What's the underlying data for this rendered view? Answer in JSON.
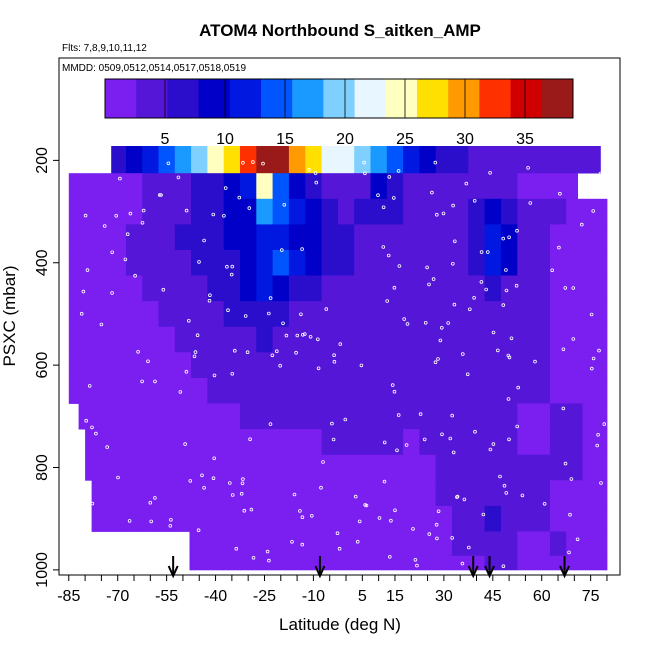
{
  "chart_data": {
    "type": "heatmap",
    "title": "ATOM4 Northbound S_aitken_AMP",
    "subtitle_flights": "Flts: 7,8,9,10,11,12",
    "subtitle_dates": "MMDD: 0509,0512,0514,0517,0518,0519",
    "xlabel": "Latitude (deg N)",
    "ylabel": "PSXC (mbar)",
    "xlim": [
      -88,
      84
    ],
    "ylim": [
      1010,
      0
    ],
    "x_ticks": [
      "-85",
      "-70",
      "-55",
      "-40",
      "-25",
      "-10",
      "5",
      "15",
      "30",
      "45",
      "60",
      "75"
    ],
    "x_tick_values": [
      -85,
      -70,
      -55,
      -40,
      -25,
      -10,
      5,
      15,
      30,
      45,
      60,
      75
    ],
    "y_ticks": [
      "200",
      "400",
      "600",
      "800",
      "1000"
    ],
    "y_tick_values": [
      200,
      400,
      600,
      800,
      1000
    ],
    "colorbar": {
      "range": [
        0,
        39
      ],
      "ticks": [
        "5",
        "10",
        "15",
        "20",
        "25",
        "30",
        "35"
      ],
      "tick_values": [
        5,
        10,
        15,
        20,
        25,
        30,
        35
      ],
      "colors": [
        "#7a1ff0",
        "#5516d8",
        "#2a0ecc",
        "#0000c8",
        "#0018e0",
        "#0055ff",
        "#1a9aff",
        "#7fd0ff",
        "#e8f6ff",
        "#ffffc0",
        "#ffe000",
        "#ff9a00",
        "#ff3000",
        "#d00000",
        "#9a1a1a"
      ]
    },
    "arrows_lat": [
      -53,
      -8,
      39,
      44,
      67
    ],
    "pressure_levels": [
      200,
      250,
      300,
      350,
      400,
      450,
      500,
      550,
      600,
      650,
      700,
      750,
      800,
      850,
      900,
      950,
      995
    ],
    "latitude_bins": [
      -85,
      -80,
      -75,
      -70,
      -65,
      -60,
      -55,
      -50,
      -45,
      -40,
      -35,
      -30,
      -25,
      -20,
      -15,
      -10,
      -5,
      0,
      5,
      10,
      15,
      20,
      25,
      30,
      35,
      40,
      45,
      50,
      55,
      60,
      65,
      70,
      75,
      80
    ],
    "lat_coverage": [
      [
        -72,
        78
      ],
      [
        -85,
        71
      ],
      [
        -85,
        80
      ],
      [
        -85,
        80
      ],
      [
        -85,
        80
      ],
      [
        -85,
        80
      ],
      [
        -85,
        80
      ],
      [
        -85,
        80
      ],
      [
        -85,
        80
      ],
      [
        -85,
        80
      ],
      [
        -82,
        80
      ],
      [
        -80,
        80
      ],
      [
        -80,
        80
      ],
      [
        -78,
        80
      ],
      [
        -78,
        80
      ],
      [
        -48,
        80
      ],
      [
        -48,
        80
      ]
    ],
    "values": [
      [
        3,
        4,
        5,
        6,
        8,
        11,
        14,
        17,
        20,
        24,
        28,
        33,
        37,
        38,
        30,
        26,
        23,
        21,
        19,
        18,
        15,
        12,
        9,
        7,
        6,
        5,
        5,
        5,
        5,
        4,
        4,
        4,
        3,
        3
      ],
      [
        1,
        1,
        2,
        2,
        2,
        3,
        4,
        5,
        6,
        6,
        8,
        12,
        24,
        13,
        9,
        7,
        5,
        4,
        5,
        8,
        6,
        5,
        5,
        4,
        3,
        3,
        3,
        3,
        2,
        2,
        2,
        2,
        2,
        2
      ],
      [
        1,
        1,
        1,
        2,
        2,
        3,
        4,
        5,
        6,
        7,
        9,
        10,
        16,
        15,
        12,
        9,
        7,
        5,
        6,
        7,
        6,
        4,
        4,
        4,
        5,
        6,
        8,
        7,
        4,
        3,
        3,
        2,
        2,
        2
      ],
      [
        1,
        1,
        1,
        2,
        3,
        3,
        4,
        6,
        6,
        7,
        8,
        9,
        11,
        12,
        10,
        8,
        7,
        6,
        5,
        5,
        5,
        4,
        4,
        4,
        5,
        6,
        12,
        8,
        4,
        3,
        2,
        2,
        2,
        2
      ],
      [
        1,
        1,
        1,
        2,
        3,
        3,
        4,
        5,
        6,
        7,
        7,
        8,
        12,
        13,
        11,
        8,
        7,
        6,
        5,
        5,
        5,
        4,
        4,
        4,
        5,
        6,
        12,
        9,
        4,
        3,
        2,
        2,
        2,
        2
      ],
      [
        1,
        1,
        1,
        1,
        2,
        3,
        3,
        4,
        5,
        6,
        7,
        8,
        12,
        9,
        7,
        6,
        5,
        5,
        5,
        5,
        5,
        4,
        4,
        4,
        5,
        5,
        6,
        5,
        4,
        3,
        2,
        2,
        2,
        2
      ],
      [
        1,
        1,
        1,
        1,
        2,
        2,
        3,
        3,
        4,
        5,
        6,
        6,
        7,
        6,
        5,
        5,
        5,
        5,
        4,
        5,
        5,
        4,
        4,
        4,
        4,
        4,
        5,
        4,
        4,
        3,
        2,
        2,
        2,
        1
      ],
      [
        1,
        1,
        1,
        1,
        1,
        2,
        2,
        3,
        3,
        4,
        5,
        5,
        6,
        5,
        5,
        4,
        4,
        4,
        4,
        5,
        5,
        4,
        4,
        4,
        4,
        4,
        4,
        4,
        3,
        3,
        2,
        2,
        2,
        1
      ],
      [
        1,
        1,
        1,
        1,
        1,
        2,
        2,
        2,
        3,
        3,
        4,
        4,
        4,
        4,
        5,
        5,
        5,
        4,
        4,
        4,
        5,
        4,
        4,
        3,
        3,
        3,
        3,
        3,
        3,
        3,
        2,
        2,
        1,
        1
      ],
      [
        1,
        1,
        1,
        1,
        1,
        1,
        2,
        2,
        2,
        3,
        3,
        3,
        4,
        5,
        5,
        5,
        4,
        4,
        4,
        4,
        4,
        3,
        3,
        3,
        3,
        3,
        3,
        3,
        3,
        3,
        2,
        2,
        1,
        1
      ],
      [
        1,
        1,
        1,
        1,
        1,
        1,
        1,
        2,
        2,
        2,
        2,
        3,
        3,
        3,
        3,
        3,
        3,
        3,
        3,
        3,
        3,
        3,
        3,
        3,
        3,
        3,
        3,
        3,
        2,
        2,
        4,
        3,
        1,
        1
      ],
      [
        1,
        1,
        1,
        1,
        1,
        1,
        1,
        1,
        2,
        2,
        2,
        2,
        2,
        2,
        2,
        2,
        3,
        3,
        3,
        3,
        3,
        2,
        3,
        3,
        3,
        3,
        3,
        3,
        2,
        2,
        5,
        3,
        1,
        1
      ],
      [
        1,
        1,
        1,
        1,
        1,
        1,
        1,
        1,
        1,
        1,
        2,
        2,
        2,
        2,
        2,
        2,
        2,
        2,
        2,
        2,
        2,
        2,
        2,
        3,
        3,
        3,
        3,
        3,
        3,
        3,
        3,
        3,
        1,
        1
      ],
      [
        1,
        1,
        1,
        1,
        1,
        1,
        1,
        1,
        1,
        1,
        1,
        2,
        2,
        2,
        2,
        2,
        2,
        2,
        2,
        2,
        2,
        2,
        2,
        3,
        3,
        4,
        4,
        3,
        3,
        3,
        2,
        2,
        1,
        1
      ],
      [
        1,
        1,
        1,
        1,
        1,
        1,
        1,
        1,
        1,
        1,
        1,
        1,
        1,
        2,
        2,
        2,
        2,
        2,
        2,
        2,
        2,
        2,
        2,
        2,
        3,
        4,
        6,
        5,
        3,
        3,
        2,
        2,
        1,
        1
      ],
      [
        1,
        1,
        1,
        1,
        1,
        1,
        1,
        1,
        1,
        1,
        2,
        2,
        2,
        2,
        2,
        2,
        2,
        2,
        2,
        2,
        2,
        2,
        2,
        2,
        3,
        3,
        4,
        3,
        2,
        2,
        3,
        2,
        1,
        1
      ],
      [
        1,
        1,
        1,
        1,
        1,
        1,
        1,
        1,
        1,
        1,
        1,
        2,
        2,
        2,
        2,
        2,
        2,
        2,
        2,
        2,
        2,
        2,
        2,
        2,
        2,
        2,
        3,
        3,
        2,
        2,
        2,
        2,
        1,
        1
      ]
    ]
  }
}
